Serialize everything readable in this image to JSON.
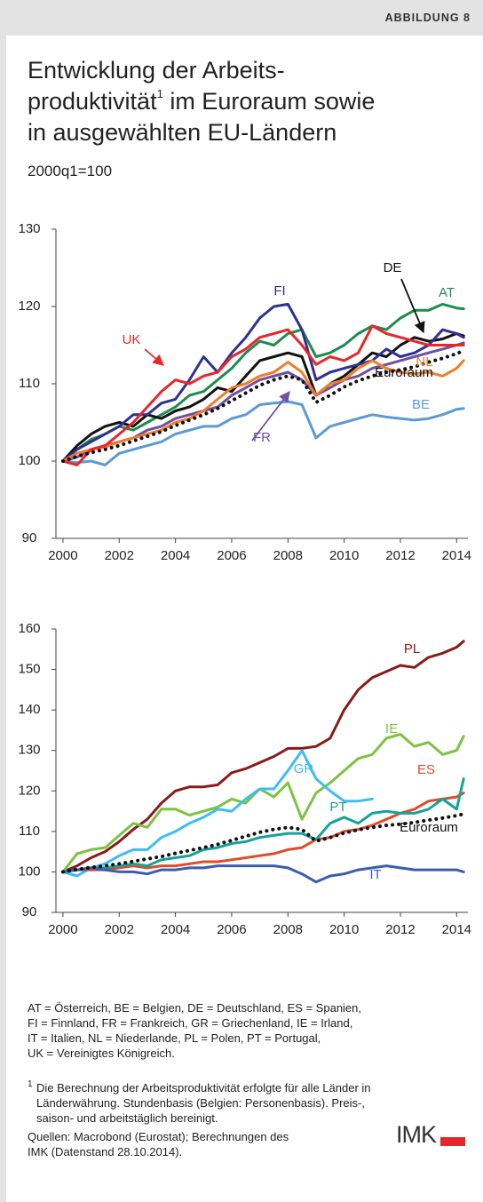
{
  "header": {
    "label": "ABBILDUNG 8"
  },
  "title": {
    "line1": "Entwicklung der Arbeits-",
    "line2a": "produktivität",
    "line2mark": "1",
    "line2b": " im Euroraum sowie",
    "line3": "in ausgewählten EU-Ländern"
  },
  "subtitle": "2000q1=100",
  "chart_data": [
    {
      "type": "line",
      "x": [
        2000,
        2000.5,
        2001,
        2001.5,
        2002,
        2002.5,
        2003,
        2003.5,
        2004,
        2004.5,
        2005,
        2005.5,
        2006,
        2006.5,
        2007,
        2007.5,
        2008,
        2008.5,
        2009,
        2009.5,
        2010,
        2010.5,
        2011,
        2011.5,
        2012,
        2012.5,
        2013,
        2013.5,
        2014,
        2014.25
      ],
      "xlim": [
        1999.75,
        2014.4
      ],
      "xticks": [
        2000,
        2002,
        2004,
        2006,
        2008,
        2010,
        2012,
        2014
      ],
      "ylim": [
        90,
        130
      ],
      "yticks": [
        90,
        100,
        110,
        120,
        130
      ],
      "series": [
        {
          "name": "AT",
          "color": "#1e8c4e",
          "values": [
            100,
            101.5,
            102.8,
            103.5,
            104.5,
            104,
            105,
            106,
            107,
            108.5,
            109,
            110.5,
            112,
            114,
            115.5,
            115,
            116.5,
            117,
            113.5,
            114,
            115,
            116.5,
            117.5,
            117,
            118.5,
            119.5,
            119.5,
            120.3,
            119.8,
            119.7
          ]
        },
        {
          "name": "BE",
          "color": "#5b9bd5",
          "values": [
            100,
            99.8,
            100,
            99.5,
            101,
            101.5,
            102,
            102.5,
            103.5,
            104,
            104.5,
            104.5,
            105.5,
            106,
            107.3,
            107.5,
            107.7,
            107.3,
            103,
            104.5,
            105,
            105.5,
            106,
            105.7,
            105.5,
            105.3,
            105.5,
            106,
            106.7,
            106.8
          ]
        },
        {
          "name": "DE",
          "color": "#111111",
          "values": [
            100,
            102,
            103.5,
            104.5,
            105,
            104.5,
            106,
            105.5,
            106.5,
            107,
            108,
            109.5,
            109,
            111,
            113,
            113.5,
            114,
            113.5,
            108.5,
            110,
            111,
            112.5,
            114,
            113.5,
            115,
            116,
            115.5,
            115.8,
            116.5,
            116.2
          ]
        },
        {
          "name": "FI",
          "color": "#2e3192",
          "values": [
            100,
            101.5,
            102.5,
            103.5,
            104.5,
            106,
            106,
            107.5,
            108,
            110.5,
            113.5,
            111.5,
            114,
            116,
            118.5,
            120,
            120.3,
            117,
            110.5,
            111.5,
            112,
            112.5,
            113,
            114.5,
            113.5,
            114,
            115,
            117,
            116.5,
            116
          ]
        },
        {
          "name": "FR",
          "color": "#7050a0",
          "values": [
            100,
            100.5,
            101.5,
            102,
            102.5,
            103,
            104,
            104.5,
            105.5,
            106,
            106.5,
            107,
            108.5,
            109.5,
            110.5,
            111,
            111.5,
            110.5,
            108.5,
            109.5,
            110.5,
            111,
            112,
            112.5,
            113,
            113.5,
            114,
            114.5,
            115,
            115.3
          ]
        },
        {
          "name": "NL",
          "color": "#f07d2a",
          "values": [
            100,
            101,
            101.5,
            101.8,
            102.5,
            103,
            103.5,
            104,
            105,
            105.5,
            106.5,
            108,
            109.5,
            110,
            111,
            111.5,
            112.8,
            111.5,
            108.5,
            110,
            110.5,
            112,
            113,
            112,
            111.5,
            111.3,
            111.5,
            111,
            112,
            113
          ]
        },
        {
          "name": "UK",
          "color": "#e8262b",
          "values": [
            100,
            99.5,
            101.5,
            102,
            103.5,
            105,
            107,
            109,
            110.5,
            110,
            111,
            111.5,
            113.5,
            114.5,
            116,
            116.5,
            117,
            115,
            112.5,
            113.5,
            113,
            114,
            117.5,
            116.5,
            116,
            115.5,
            115,
            115,
            115,
            115
          ]
        },
        {
          "name": "Euroraum",
          "color": "#111111",
          "style": "dotted",
          "values": [
            100,
            100.6,
            101.1,
            101.5,
            102,
            102.6,
            103.2,
            103.8,
            104.6,
            105.3,
            106,
            106.8,
            107.8,
            108.8,
            109.8,
            110.5,
            111,
            110.5,
            107.6,
            108.5,
            109.6,
            110.4,
            111,
            111.5,
            111.8,
            112.2,
            112.8,
            113.3,
            113.9,
            114.3
          ]
        }
      ]
    },
    {
      "type": "line",
      "x": [
        2000,
        2000.5,
        2001,
        2001.5,
        2002,
        2002.5,
        2003,
        2003.5,
        2004,
        2004.5,
        2005,
        2005.5,
        2006,
        2006.5,
        2007,
        2007.5,
        2008,
        2008.5,
        2009,
        2009.5,
        2010,
        2010.5,
        2011,
        2011.5,
        2012,
        2012.5,
        2013,
        2013.5,
        2014,
        2014.25
      ],
      "xlim": [
        1999.75,
        2014.4
      ],
      "xticks": [
        2000,
        2002,
        2004,
        2006,
        2008,
        2010,
        2012,
        2014
      ],
      "ylim": [
        90,
        160
      ],
      "yticks": [
        90,
        100,
        110,
        120,
        130,
        140,
        150,
        160
      ],
      "series": [
        {
          "name": "PL",
          "color": "#8b1a1a",
          "values": [
            100,
            101.5,
            103.5,
            105,
            107.5,
            110.5,
            113,
            117,
            120,
            121,
            121,
            121.5,
            124.5,
            125.5,
            127,
            128.5,
            130.5,
            130.5,
            131,
            133,
            140,
            145,
            148,
            149.5,
            151,
            150.5,
            153,
            154,
            155.5,
            157
          ]
        },
        {
          "name": "IE",
          "color": "#7dc242",
          "values": [
            100,
            104.5,
            105.5,
            106,
            109,
            112,
            111,
            115.5,
            115.5,
            114,
            115,
            116,
            118,
            117,
            120.5,
            118.5,
            122,
            113,
            119.5,
            122,
            125,
            128,
            129,
            133,
            134,
            131,
            132,
            129,
            130,
            133.5
          ]
        },
        {
          "name": "GR",
          "color": "#3fbdf0",
          "values": [
            100,
            99,
            101,
            102,
            104,
            105.5,
            105.5,
            108.5,
            110,
            112,
            113.5,
            115.5,
            115,
            118,
            120.5,
            120.5,
            125,
            130,
            123,
            120,
            117.5,
            117.5,
            118,
            null,
            null,
            null,
            null,
            null,
            null,
            null
          ]
        },
        {
          "name": "ES",
          "color": "#e04b2a",
          "values": [
            100,
            100.5,
            100.5,
            100.5,
            101,
            101.5,
            101,
            101.5,
            101.5,
            102,
            102.5,
            102.5,
            103,
            103.5,
            104,
            104.5,
            105.5,
            106,
            108,
            108.5,
            110,
            110.5,
            111.5,
            113,
            114.5,
            115.5,
            117.5,
            118,
            118.5,
            119.5
          ]
        },
        {
          "name": "PT",
          "color": "#14a39a",
          "values": [
            100,
            100.5,
            101,
            101,
            101.5,
            102,
            101.5,
            103,
            103.5,
            104,
            105.5,
            106,
            107,
            107.5,
            108.5,
            109,
            109.5,
            109.5,
            108,
            112,
            113.5,
            112,
            114.5,
            115,
            114.5,
            114.5,
            115.5,
            118,
            115.5,
            123
          ]
        },
        {
          "name": "IT",
          "color": "#3a5db0",
          "values": [
            100,
            100.5,
            101,
            100.5,
            100,
            100,
            99.5,
            100.5,
            100.5,
            101,
            101,
            101.5,
            101.5,
            101.5,
            101.5,
            101.5,
            101,
            99.5,
            97.5,
            99,
            99.5,
            100.5,
            101,
            101.5,
            101,
            100.5,
            100.5,
            100.5,
            100.5,
            100
          ]
        },
        {
          "name": "Euroraum",
          "color": "#111111",
          "style": "dotted",
          "values": [
            100,
            100.6,
            101.1,
            101.5,
            102,
            102.6,
            103.2,
            103.8,
            104.6,
            105.3,
            106,
            106.8,
            107.8,
            108.8,
            109.8,
            110.5,
            111,
            110.5,
            107.6,
            108.5,
            109.6,
            110.4,
            111,
            111.5,
            111.8,
            112.2,
            112.8,
            113.3,
            113.9,
            114.3
          ]
        }
      ]
    }
  ],
  "footer": {
    "abbreviations": [
      "AT = Österreich, BE = Belgien, DE = Deutschland, ES = Spanien,",
      "FI = Finnland, FR = Frankreich, GR = Griechenland, IE = Irland,",
      "IT = Italien, NL = Niederlande, PL = Polen, PT = Portugal,",
      "UK = Vereinigtes Königreich."
    ],
    "note_mark": "1",
    "note": [
      "Die Berechnung der Arbeitsproduktivität erfolgte für alle Länder in",
      "Länderwährung. Stundenbasis (Belgien: Personenbasis). Preis-,",
      "saison- und arbeitstäglich bereinigt."
    ],
    "source": [
      "Quellen: Macrobond (Eurostat); Berechnungen des",
      "IMK (Datenstand 28.10.2014)."
    ],
    "logo": "IMK"
  }
}
